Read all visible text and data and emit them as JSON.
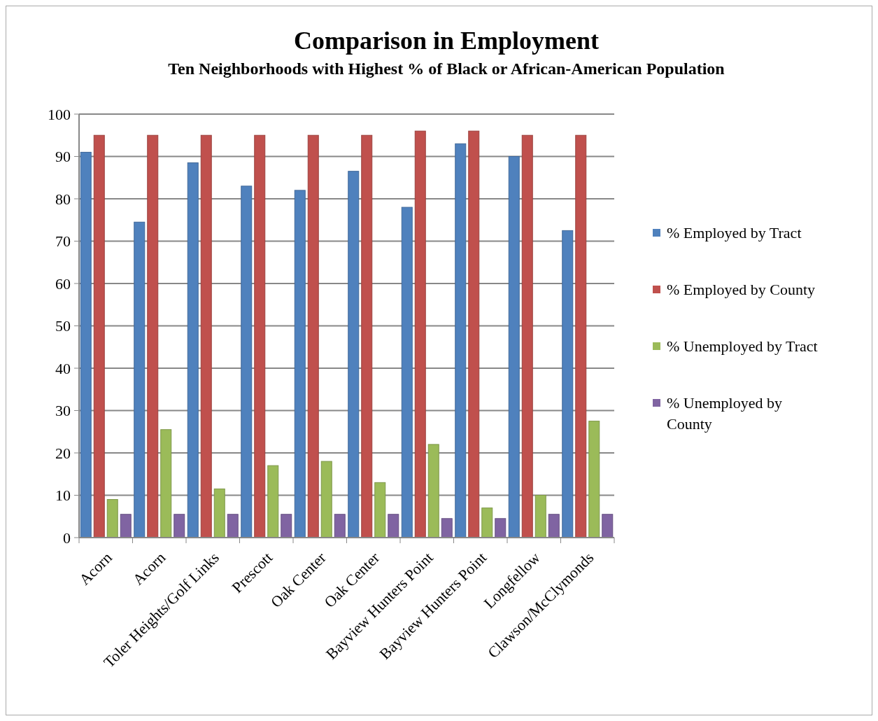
{
  "chart_data": {
    "type": "bar",
    "title": "Comparison in Employment",
    "subtitle": "Ten Neighborhoods with Highest % of Black or African-American Population",
    "categories": [
      "Acorn",
      "Acorn",
      "Toler Heights/Golf Links",
      "Prescott",
      "Oak Center",
      "Oak Center",
      "Bayview Hunters Point",
      "Bayview Hunters Point",
      "Longfellow",
      "Clawson/McClymonds"
    ],
    "series": [
      {
        "name": "% Employed by Tract",
        "color": "#4f81bd",
        "values": [
          91,
          74.5,
          88.5,
          83,
          82,
          86.5,
          78,
          93,
          90,
          72.5
        ]
      },
      {
        "name": "% Employed by County",
        "color": "#c0504d",
        "values": [
          95,
          95,
          95,
          95,
          95,
          95,
          96,
          96,
          95,
          95
        ]
      },
      {
        "name": "% Unemployed by Tract",
        "color": "#9bbb59",
        "values": [
          9,
          25.5,
          11.5,
          17,
          18,
          13,
          22,
          7,
          10,
          27.5
        ]
      },
      {
        "name": "% Unemployed by County",
        "color": "#8064a2",
        "values": [
          5.5,
          5.5,
          5.5,
          5.5,
          5.5,
          5.5,
          4.5,
          4.5,
          5.5,
          5.5
        ]
      }
    ],
    "ylim": [
      0,
      100
    ],
    "yticks": [
      0,
      10,
      20,
      30,
      40,
      50,
      60,
      70,
      80,
      90,
      100
    ],
    "grid": "y",
    "legend": "right"
  }
}
